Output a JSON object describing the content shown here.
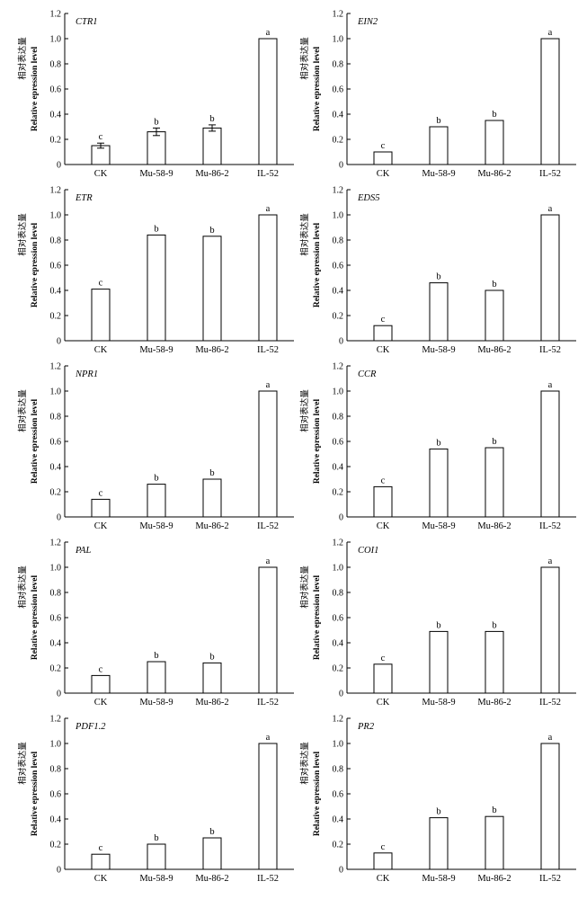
{
  "figure": {
    "ylabel_en": "Relative epression level",
    "ylabel_zh": "相对表达量"
  },
  "chart_data": [
    {
      "type": "bar",
      "title": "CTR1",
      "categories": [
        "CK",
        "Mu-58-9",
        "Mu-86-2",
        "IL-52"
      ],
      "values": [
        0.15,
        0.26,
        0.29,
        1.0
      ],
      "errors": [
        0.02,
        0.03,
        0.025,
        0
      ],
      "labels": [
        "c",
        "b",
        "b",
        "a"
      ],
      "yticks": [
        "0",
        "0.2",
        "0.4",
        "0.6",
        "0.8",
        "1.0",
        "1.2"
      ],
      "ylim": [
        0,
        1.2
      ]
    },
    {
      "type": "bar",
      "title": "EIN2",
      "categories": [
        "CK",
        "Mu-58-9",
        "Mu-86-2",
        "IL-52"
      ],
      "values": [
        0.1,
        0.3,
        0.35,
        1.0
      ],
      "labels": [
        "c",
        "b",
        "b",
        "a"
      ],
      "yticks": [
        "0",
        "0.2",
        "0.4",
        "0.6",
        "0.8",
        "1.0",
        "1.2"
      ],
      "ylim": [
        0,
        1.2
      ]
    },
    {
      "type": "bar",
      "title": "ETR",
      "categories": [
        "CK",
        "Mu-58-9",
        "Mu-86-2",
        "IL-52"
      ],
      "values": [
        0.41,
        0.84,
        0.83,
        1.0
      ],
      "labels": [
        "c",
        "b",
        "b",
        "a"
      ],
      "yticks": [
        "0",
        "0.2",
        "0.4",
        "0.6",
        "0.8",
        "1.0",
        "1.2"
      ],
      "ylim": [
        0,
        1.2
      ]
    },
    {
      "type": "bar",
      "title": "EDS5",
      "categories": [
        "CK",
        "Mu-58-9",
        "Mu-86-2",
        "IL-52"
      ],
      "values": [
        0.12,
        0.46,
        0.4,
        1.0
      ],
      "labels": [
        "c",
        "b",
        "b",
        "a"
      ],
      "yticks": [
        "0",
        "0.2",
        "0.4",
        "0.6",
        "0.8",
        "1.0",
        "1.2"
      ],
      "ylim": [
        0,
        1.2
      ]
    },
    {
      "type": "bar",
      "title": "NPR1",
      "categories": [
        "CK",
        "Mu-58-9",
        "Mu-86-2",
        "IL-52"
      ],
      "values": [
        0.14,
        0.26,
        0.3,
        1.0
      ],
      "labels": [
        "c",
        "b",
        "b",
        "a"
      ],
      "yticks": [
        "0",
        "0.2",
        "0.4",
        "0.6",
        "0.8",
        "1.0",
        "1.2"
      ],
      "ylim": [
        0,
        1.2
      ]
    },
    {
      "type": "bar",
      "title": "CCR",
      "categories": [
        "CK",
        "Mu-58-9",
        "Mu-86-2",
        "IL-52"
      ],
      "values": [
        0.24,
        0.54,
        0.55,
        1.0
      ],
      "labels": [
        "c",
        "b",
        "b",
        "a"
      ],
      "yticks": [
        "0",
        "0.2",
        "0.4",
        "0.6",
        "0.8",
        "1.0",
        "1.2"
      ],
      "ylim": [
        0,
        1.2
      ]
    },
    {
      "type": "bar",
      "title": "PAL",
      "categories": [
        "CK",
        "Mu-58-9",
        "Mu-86-2",
        "IL-52"
      ],
      "values": [
        0.14,
        0.25,
        0.24,
        1.0
      ],
      "labels": [
        "c",
        "b",
        "b",
        "a"
      ],
      "yticks": [
        "0",
        "0.2",
        "0.4",
        "0.6",
        "0.8",
        "1.0",
        "1.2"
      ],
      "ylim": [
        0,
        1.2
      ]
    },
    {
      "type": "bar",
      "title": "COI1",
      "categories": [
        "CK",
        "Mu-58-9",
        "Mu-86-2",
        "IL-52"
      ],
      "values": [
        0.23,
        0.49,
        0.49,
        1.0
      ],
      "labels": [
        "c",
        "b",
        "b",
        "a"
      ],
      "yticks": [
        "0",
        "0.2",
        "0.4",
        "0.6",
        "0.8",
        "1.0",
        "1.2"
      ],
      "ylim": [
        0,
        1.2
      ]
    },
    {
      "type": "bar",
      "title": "PDF1.2",
      "categories": [
        "CK",
        "Mu-58-9",
        "Mu-86-2",
        "IL-52"
      ],
      "values": [
        0.12,
        0.2,
        0.25,
        1.0
      ],
      "labels": [
        "c",
        "b",
        "b",
        "a"
      ],
      "yticks": [
        "0",
        "0.2",
        "0.4",
        "0.6",
        "0.8",
        "1.0",
        "1.2"
      ],
      "ylim": [
        0,
        1.2
      ]
    },
    {
      "type": "bar",
      "title": "PR2",
      "categories": [
        "CK",
        "Mu-58-9",
        "Mu-86-2",
        "IL-52"
      ],
      "values": [
        0.13,
        0.41,
        0.42,
        1.0
      ],
      "labels": [
        "c",
        "b",
        "b",
        "a"
      ],
      "yticks": [
        "0",
        "0.2",
        "0.4",
        "0.6",
        "0.8",
        "1.0",
        "1.2"
      ],
      "ylim": [
        0,
        1.2
      ]
    }
  ]
}
